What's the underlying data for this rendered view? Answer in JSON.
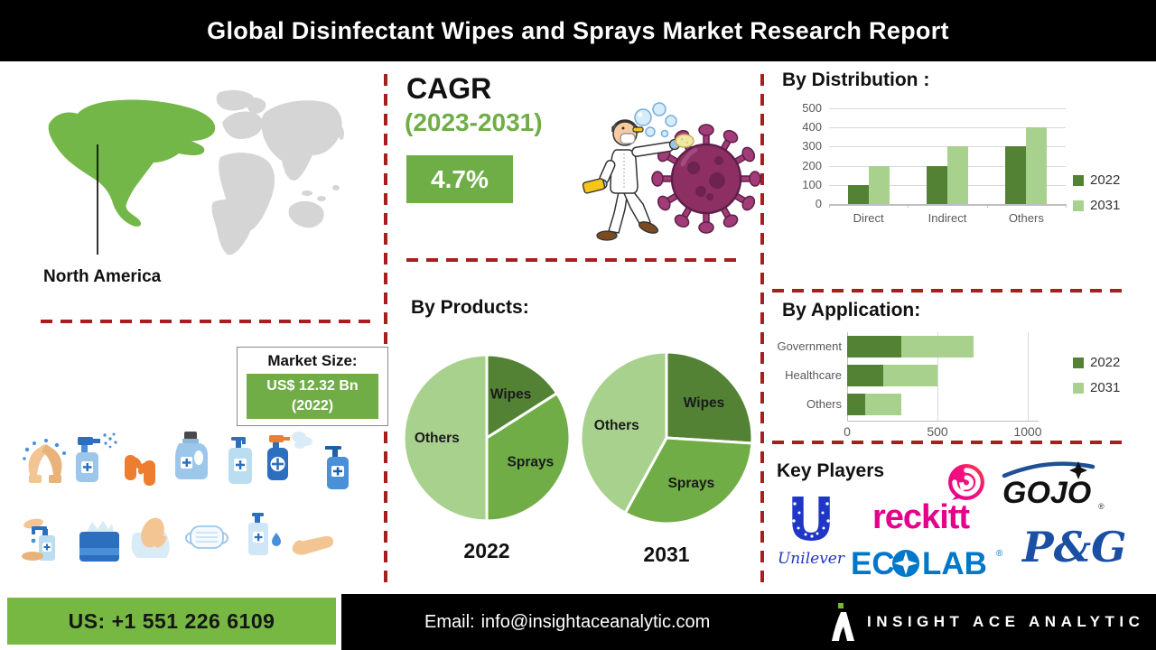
{
  "header": {
    "title": "Global Disinfectant Wipes and Sprays Market Research Report"
  },
  "region_map": {
    "label": "North America"
  },
  "cagr": {
    "label": "CAGR",
    "period": "(2023-2031)",
    "value": "4.7%"
  },
  "market_size": {
    "label": "Market Size:",
    "value": "US$ 12.32 Bn",
    "year": "(2022)"
  },
  "chart_data": [
    {
      "id": "distribution",
      "type": "bar",
      "title": "By Distribution :",
      "categories": [
        "Direct",
        "Indirect",
        "Others"
      ],
      "series": [
        {
          "name": "2022",
          "color": "#548235",
          "values": [
            100,
            200,
            300
          ]
        },
        {
          "name": "2031",
          "color": "#A9D18E",
          "values": [
            200,
            300,
            400
          ]
        }
      ],
      "ylim": [
        0,
        500
      ],
      "yticks": [
        0,
        100,
        200,
        300,
        400,
        500
      ],
      "grid": true,
      "legend_position": "right"
    },
    {
      "id": "products",
      "type": "pie",
      "title": "By Products:",
      "pies": [
        {
          "label": "2022",
          "slices": [
            {
              "name": "Wipes",
              "value": 16,
              "color": "#548235"
            },
            {
              "name": "Sprays",
              "value": 34,
              "color": "#70AD47"
            },
            {
              "name": "Others",
              "value": 50,
              "color": "#A9D18E"
            }
          ]
        },
        {
          "label": "2031",
          "slices": [
            {
              "name": "Wipes",
              "value": 26,
              "color": "#548235"
            },
            {
              "name": "Sprays",
              "value": 32,
              "color": "#70AD47"
            },
            {
              "name": "Others",
              "value": 42,
              "color": "#A9D18E"
            }
          ]
        }
      ]
    },
    {
      "id": "application",
      "type": "bar",
      "orientation": "horizontal",
      "stacked": true,
      "title": "By Application:",
      "categories": [
        "Government",
        "Healthcare",
        "Others"
      ],
      "series": [
        {
          "name": "2022",
          "color": "#548235",
          "values": [
            300,
            200,
            100
          ]
        },
        {
          "name": "2031",
          "color": "#A9D18E",
          "values": [
            400,
            300,
            200
          ]
        }
      ],
      "xlim": [
        0,
        1200
      ],
      "xticks": [
        0,
        500,
        1000
      ],
      "grid": true,
      "legend_position": "right"
    }
  ],
  "key_players": {
    "title": "Key Players",
    "reg_mark": "®",
    "players": [
      {
        "name": "Unilever",
        "initial": "U",
        "wordmark": "Unilever",
        "color": "#1F36C7"
      },
      {
        "name": "Reckitt",
        "wordmark": "reckitt",
        "color": "#E4018B"
      },
      {
        "name": "GOJO",
        "wordmark": "GOJO",
        "color": "#111111"
      },
      {
        "name": "Ecolab",
        "wordmark_left": "EC",
        "wordmark_right": "LAB",
        "color": "#0077C8"
      },
      {
        "name": "P&G",
        "wordmark": "P&G",
        "color": "#1A4FA3"
      }
    ]
  },
  "footer": {
    "phone": "US: +1 551 226 6109",
    "email_label": "Email:",
    "email": "info@insightaceanalytic.com",
    "brand": "INSIGHT ACE ANALYTIC"
  },
  "colors": {
    "dark_green": "#548235",
    "mid_green": "#70AD47",
    "light_green": "#A9D18E",
    "map_green": "#74B749",
    "divider_red": "#A61E1E",
    "footer_green": "#77B843",
    "header_bg": "#000000"
  }
}
